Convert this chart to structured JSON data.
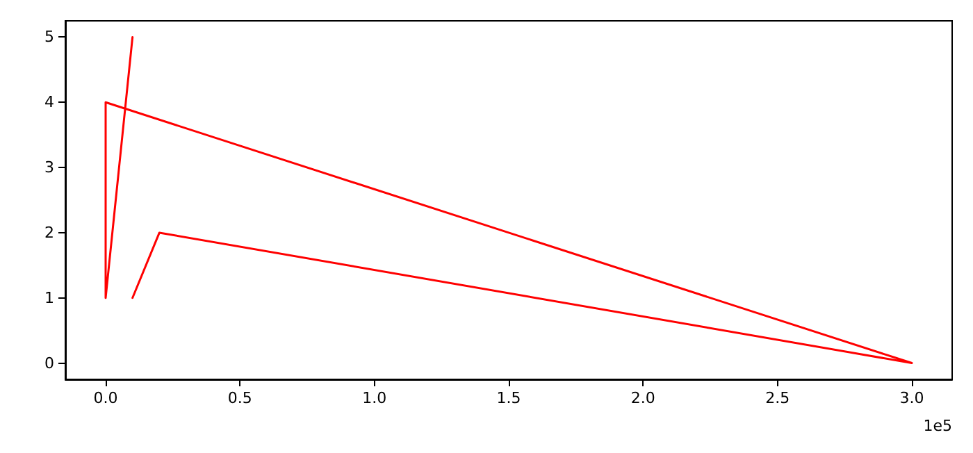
{
  "chart_data": {
    "type": "line",
    "x": [
      0.1,
      0.2,
      3.0,
      0,
      0,
      0.1
    ],
    "series": [
      {
        "color": "#ff0000",
        "values": [
          1,
          2,
          0,
          4,
          1,
          5
        ]
      }
    ],
    "xlim": [
      -0.15,
      3.15
    ],
    "xticks": [
      {
        "value": 0,
        "label": "0.0"
      },
      0.5,
      {
        "value": 1,
        "label": "1.0"
      },
      1.5,
      {
        "value": 2,
        "label": "2.0"
      },
      2.5,
      {
        "value": 3,
        "label": "3.0"
      }
    ],
    "ylim": [
      -0.25,
      5.25
    ],
    "yticks": [
      0,
      1,
      2,
      3,
      4,
      5
    ],
    "annotations": [
      "1e5"
    ],
    "grid": false,
    "marker": "none",
    "line_style": "solid"
  }
}
